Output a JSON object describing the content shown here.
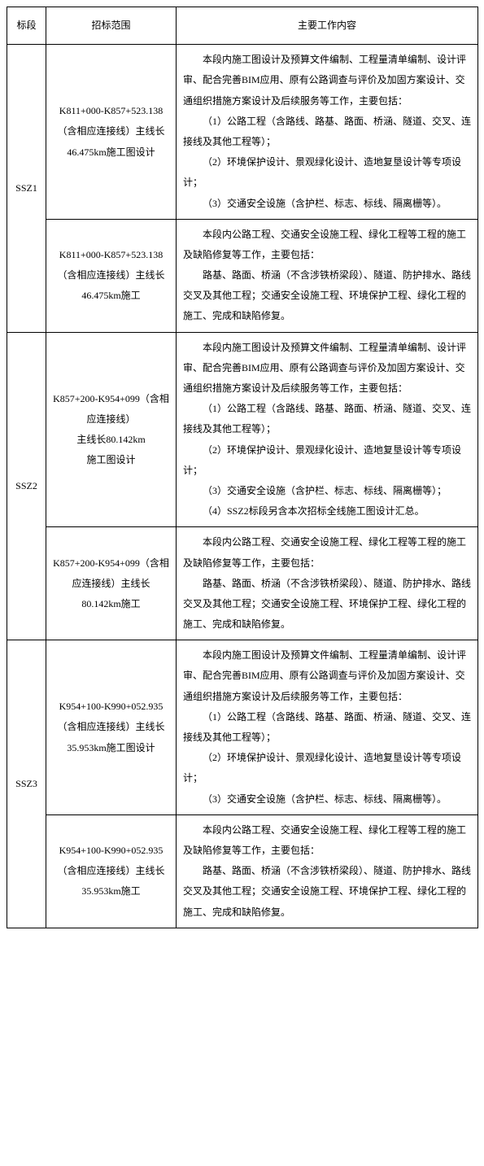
{
  "header": {
    "section": "标段",
    "scope": "招标范围",
    "work": "主要工作内容"
  },
  "rows": [
    {
      "section": "SSZ1",
      "scope1": "K811+000-K857+523.138（含相应连接线）主线长46.475km施工图设计",
      "work1": {
        "p1": "本段内施工图设计及预算文件编制、工程量清单编制、设计评审、配合完善BIM应用、原有公路调查与评价及加固方案设计、交通组织措施方案设计及后续服务等工作，主要包括：",
        "p2": "（1）公路工程（含路线、路基、路面、桥涵、隧道、交叉、连接线及其他工程等）；",
        "p3": "（2）环境保护设计、景观绿化设计、造地复垦设计等专项设计；",
        "p4": "（3）交通安全设施（含护栏、标志、标线、隔离栅等）。"
      },
      "scope2": "K811+000-K857+523.138（含相应连接线）主线长46.475km施工",
      "work2": {
        "p1": "本段内公路工程、交通安全设施工程、绿化工程等工程的施工及缺陷修复等工作，主要包括：",
        "p2": "路基、路面、桥涵（不含涉铁桥梁段）、隧道、防护排水、路线交叉及其他工程；交通安全设施工程、环境保护工程、绿化工程的施工、完成和缺陷修复。"
      }
    },
    {
      "section": "SSZ2",
      "scope1_l1": "K857+200-K954+099（含相应连接线）",
      "scope1_l2": "主线长80.142km",
      "scope1_l3": "施工图设计",
      "work1": {
        "p1": "本段内施工图设计及预算文件编制、工程量清单编制、设计评审、配合完善BIM应用、原有公路调查与评价及加固方案设计、交通组织措施方案设计及后续服务等工作，主要包括：",
        "p2": "（1）公路工程（含路线、路基、路面、桥涵、隧道、交叉、连接线及其他工程等）；",
        "p3": "（2）环境保护设计、景观绿化设计、造地复垦设计等专项设计；",
        "p4": "（3）交通安全设施（含护栏、标志、标线、隔离栅等）；",
        "p5": "（4）SSZ2标段另含本次招标全线施工图设计汇总。"
      },
      "scope2": "K857+200-K954+099（含相应连接线）主线长80.142km施工",
      "work2": {
        "p1": "本段内公路工程、交通安全设施工程、绿化工程等工程的施工及缺陷修复等工作，主要包括：",
        "p2": "路基、路面、桥涵（不含涉铁桥梁段）、隧道、防护排水、路线交叉及其他工程；交通安全设施工程、环境保护工程、绿化工程的施工、完成和缺陷修复。"
      }
    },
    {
      "section": "SSZ3",
      "scope1": "K954+100-K990+052.935（含相应连接线）主线长35.953km施工图设计",
      "work1": {
        "p1": "本段内施工图设计及预算文件编制、工程量清单编制、设计评审、配合完善BIM应用、原有公路调查与评价及加固方案设计、交通组织措施方案设计及后续服务等工作，主要包括：",
        "p2": "（1）公路工程（含路线、路基、路面、桥涵、隧道、交叉、连接线及其他工程等）；",
        "p3": "（2）环境保护设计、景观绿化设计、造地复垦设计等专项设计；",
        "p4": "（3）交通安全设施（含护栏、标志、标线、隔离栅等）。"
      },
      "scope2": "K954+100-K990+052.935（含相应连接线）主线长35.953km施工",
      "work2": {
        "p1": "本段内公路工程、交通安全设施工程、绿化工程等工程的施工及缺陷修复等工作，主要包括：",
        "p2": "路基、路面、桥涵（不含涉铁桥梁段）、隧道、防护排水、路线交叉及其他工程；交通安全设施工程、环境保护工程、绿化工程的施工、完成和缺陷修复。"
      }
    }
  ]
}
